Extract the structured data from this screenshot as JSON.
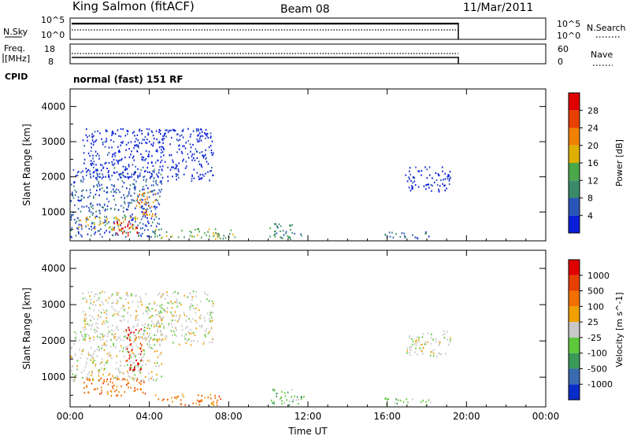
{
  "header": {
    "station": "King Salmon (fitACF)",
    "beam": "Beam 08",
    "date": "11/Mar/2011"
  },
  "panels": {
    "nsky_label": "N.Sky",
    "nsearch_label": "N.Search",
    "nsky_ticks": [
      "10^5",
      "10^0"
    ],
    "nsearch_ticks": [
      "10^5",
      "10^0"
    ],
    "freq_label_1": "Freq.",
    "freq_label_2": "[MHz]",
    "freq_ticks": [
      "18",
      "8"
    ],
    "nave_label": "Nave",
    "nave_ticks": [
      "60",
      "0"
    ],
    "cpid_label": "CPID",
    "cpid_text": "normal (fast) 151 RF"
  },
  "chart_data": [
    {
      "type": "heatmap",
      "title": "",
      "ylabel": "Slant Range [km]",
      "xlabel": "",
      "x_ticks": [
        "00:00",
        "04:00",
        "08:00",
        "12:00",
        "16:00",
        "20:00",
        "00:00"
      ],
      "xlim_hours": [
        0,
        24
      ],
      "y_ticks": [
        1000,
        2000,
        3000,
        4000
      ],
      "ylim_km": [
        180,
        4500
      ],
      "colorbar": {
        "label": "Power [dB]",
        "ticks": [
          "4",
          "8",
          "12",
          "16",
          "20",
          "24",
          "28"
        ],
        "colors": [
          "#0a1ed8",
          "#2a55b8",
          "#3a8a6a",
          "#4aa84a",
          "#e0b000",
          "#f08000",
          "#e84000",
          "#e00000"
        ]
      },
      "echo_regions": [
        {
          "t0": 0.0,
          "t1": 4.6,
          "r0": 300,
          "r1": 2300,
          "level": 1
        },
        {
          "t0": 0.6,
          "t1": 4.6,
          "r0": 2000,
          "r1": 3400,
          "level": 0
        },
        {
          "t0": 4.4,
          "t1": 7.2,
          "r0": 1900,
          "r1": 3400,
          "level": 0
        },
        {
          "t0": 0.4,
          "t1": 3.4,
          "r0": 500,
          "r1": 900,
          "level": 4
        },
        {
          "t0": 2.0,
          "t1": 3.4,
          "r0": 350,
          "r1": 750,
          "level": 7
        },
        {
          "t0": 3.3,
          "t1": 4.4,
          "r0": 900,
          "r1": 1600,
          "level": 5
        },
        {
          "t0": 4.2,
          "t1": 8.3,
          "r0": 250,
          "r1": 550,
          "level": 3
        },
        {
          "t0": 10.0,
          "t1": 11.8,
          "r0": 250,
          "r1": 700,
          "level": 2
        },
        {
          "t0": 15.8,
          "t1": 18.2,
          "r0": 250,
          "r1": 450,
          "level": 1
        },
        {
          "t0": 16.9,
          "t1": 19.2,
          "r0": 1600,
          "r1": 2300,
          "level": 0
        }
      ]
    },
    {
      "type": "heatmap",
      "title": "",
      "ylabel": "Slant Range [km]",
      "xlabel": "Time UT",
      "x_ticks": [
        "00:00",
        "04:00",
        "08:00",
        "12:00",
        "16:00",
        "20:00",
        "00:00"
      ],
      "xlim_hours": [
        0,
        24
      ],
      "y_ticks": [
        1000,
        2000,
        3000,
        4000
      ],
      "ylim_km": [
        180,
        4500
      ],
      "colorbar": {
        "label": "Velocity [m s^-1]",
        "ticks": [
          "1000",
          "500",
          "100",
          "25",
          "-25",
          "-100",
          "-500",
          "-1000"
        ],
        "colors": [
          "#0a2cc8",
          "#3a6ab0",
          "#3a9a5a",
          "#5ec83a",
          "#c8c8c8",
          "#f0a000",
          "#f07000",
          "#e84000",
          "#e00000"
        ]
      },
      "echo_regions": [
        {
          "t0": 0.0,
          "t1": 4.6,
          "r0": 900,
          "r1": 2300,
          "level": 4
        },
        {
          "t0": 0.6,
          "t1": 4.6,
          "r0": 2000,
          "r1": 3400,
          "level": 4
        },
        {
          "t0": 4.4,
          "t1": 7.2,
          "r0": 1900,
          "r1": 3400,
          "level": 4
        },
        {
          "t0": 0.6,
          "t1": 3.8,
          "r0": 500,
          "r1": 1000,
          "level": 6
        },
        {
          "t0": 2.8,
          "t1": 3.6,
          "r0": 1200,
          "r1": 2400,
          "level": 8
        },
        {
          "t0": 4.2,
          "t1": 7.6,
          "r0": 250,
          "r1": 550,
          "level": 6
        },
        {
          "t0": 10.0,
          "t1": 11.8,
          "r0": 250,
          "r1": 700,
          "level": 3
        },
        {
          "t0": 15.8,
          "t1": 18.2,
          "r0": 250,
          "r1": 450,
          "level": 3
        },
        {
          "t0": 16.9,
          "t1": 19.2,
          "r0": 1600,
          "r1": 2300,
          "level": 4
        }
      ]
    }
  ]
}
